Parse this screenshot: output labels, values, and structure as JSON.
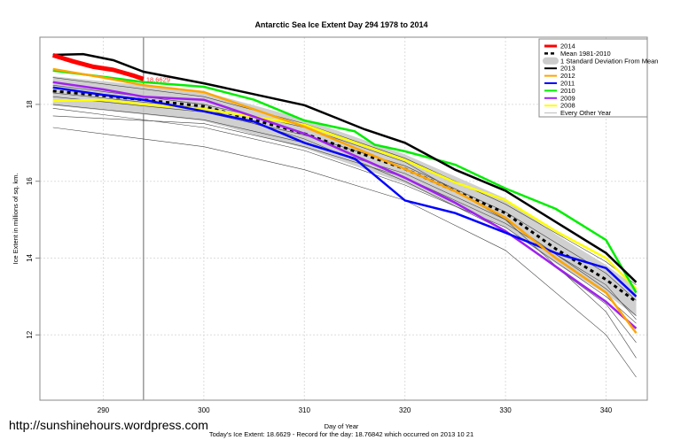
{
  "chart_data": {
    "type": "line",
    "title": "Antarctic Sea Ice Extent Day 294 1978 to 2014",
    "xlabel": "Day of Year",
    "ylabel": "Ice Extent in millions of sq. km.",
    "subtitle": "Today's Ice Extent: 18.6629  - Record for the day: 18.76842 which occurred on 2013 10 21",
    "xlim": [
      283.7,
      344.1
    ],
    "ylim": [
      10.3,
      19.75
    ],
    "xticks": [
      290,
      300,
      310,
      320,
      330,
      340
    ],
    "yticks": [
      12,
      14,
      16,
      18
    ],
    "grid": true,
    "legend_position": "top-right",
    "current_day": 294,
    "current_label": "18.6629",
    "series": [
      {
        "name": "2014",
        "color": "#ff0000",
        "x": [
          285,
          287,
          289,
          291,
          293,
          294
        ],
        "y": [
          19.28,
          19.12,
          18.98,
          18.9,
          18.75,
          18.66
        ]
      },
      {
        "name": "2013",
        "color": "#000000",
        "x": [
          285,
          288,
          291,
          294,
          300,
          310,
          316,
          320,
          325,
          330,
          335,
          340,
          343
        ],
        "y": [
          19.29,
          19.31,
          19.15,
          18.85,
          18.55,
          17.98,
          17.35,
          17.0,
          16.3,
          15.75,
          14.94,
          14.13,
          13.37
        ]
      },
      {
        "name": "2012",
        "color": "#ffa500",
        "x": [
          285,
          290,
          294,
          300,
          310,
          320,
          325,
          330,
          335,
          340,
          343
        ],
        "y": [
          18.92,
          18.7,
          18.5,
          18.32,
          17.42,
          16.32,
          15.74,
          15.05,
          14.0,
          13.1,
          12.05
        ]
      },
      {
        "name": "2011",
        "color": "#0000ff",
        "x": [
          285,
          290,
          294,
          300,
          305,
          310,
          315,
          320,
          325,
          330,
          335,
          340,
          343
        ],
        "y": [
          18.44,
          18.25,
          18.12,
          17.82,
          17.55,
          17.0,
          16.59,
          15.5,
          15.17,
          14.66,
          14.13,
          13.74,
          13.0
        ]
      },
      {
        "name": "2010",
        "color": "#00ee00",
        "x": [
          285,
          290,
          294,
          300,
          305,
          310,
          315,
          317,
          320,
          325,
          330,
          335,
          340,
          343
        ],
        "y": [
          18.88,
          18.72,
          18.58,
          18.46,
          18.12,
          17.58,
          17.3,
          16.95,
          16.78,
          16.43,
          15.81,
          15.28,
          14.47,
          13.1
        ]
      },
      {
        "name": "2009",
        "color": "#a020f0",
        "x": [
          285,
          290,
          294,
          300,
          310,
          320,
          325,
          330,
          335,
          340,
          343
        ],
        "y": [
          18.58,
          18.39,
          18.2,
          18.12,
          17.24,
          16.09,
          15.44,
          14.7,
          13.78,
          12.86,
          12.17
        ]
      },
      {
        "name": "2008",
        "color": "#ffff00",
        "x": [
          285,
          290,
          294,
          300,
          310,
          320,
          325,
          330,
          335,
          340,
          343
        ],
        "y": [
          18.09,
          18.12,
          18.0,
          17.88,
          17.47,
          16.55,
          15.97,
          15.51,
          14.7,
          14.0,
          13.2
        ]
      }
    ],
    "mean": {
      "name": "Mean 1981-2010",
      "x": [
        285,
        294,
        300,
        310,
        320,
        330,
        335,
        340,
        343
      ],
      "y": [
        18.35,
        18.12,
        17.95,
        17.24,
        16.32,
        15.17,
        14.24,
        13.44,
        12.86
      ]
    },
    "sd_band": {
      "name": "1 Standard Deviation From Mean",
      "half_width": 0.38
    },
    "other_years": {
      "name": "Every Other Year",
      "color": "#555555",
      "lines": [
        {
          "x": [
            285,
            300,
            310,
            320,
            330,
            340,
            343
          ],
          "y": [
            17.4,
            16.9,
            16.3,
            15.5,
            14.2,
            12.0,
            10.9
          ]
        },
        {
          "x": [
            285,
            300,
            310,
            320,
            330,
            340,
            343
          ],
          "y": [
            17.9,
            17.4,
            16.8,
            15.9,
            14.8,
            13.0,
            12.3
          ]
        },
        {
          "x": [
            285,
            300,
            310,
            320,
            330,
            340,
            343
          ],
          "y": [
            18.2,
            17.8,
            17.2,
            16.4,
            15.2,
            13.6,
            12.9
          ]
        },
        {
          "x": [
            285,
            300,
            310,
            320,
            330,
            340,
            343
          ],
          "y": [
            18.5,
            18.0,
            17.4,
            16.5,
            15.0,
            13.2,
            12.5
          ]
        },
        {
          "x": [
            285,
            300,
            310,
            320,
            330,
            340,
            343
          ],
          "y": [
            18.3,
            17.9,
            17.1,
            16.0,
            14.7,
            12.8,
            11.8
          ]
        },
        {
          "x": [
            285,
            300,
            310,
            320,
            330,
            340,
            343
          ],
          "y": [
            18.7,
            18.2,
            17.5,
            16.6,
            15.4,
            13.9,
            13.3
          ]
        },
        {
          "x": [
            285,
            300,
            310,
            320,
            330,
            340,
            343
          ],
          "y": [
            17.7,
            17.5,
            16.9,
            16.1,
            14.9,
            13.3,
            12.4
          ]
        },
        {
          "x": [
            285,
            300,
            310,
            320,
            330,
            340,
            343
          ],
          "y": [
            18.0,
            17.6,
            17.0,
            16.2,
            15.0,
            12.6,
            11.4
          ]
        }
      ]
    }
  },
  "legend": [
    "2014",
    "Mean 1981-2010",
    "1 Standard Deviation From Mean",
    "2013",
    "2012",
    "2011",
    "2010",
    "2009",
    "2008",
    "Every Other Year"
  ],
  "watermark": "http://sunshinehours.wordpress.com"
}
